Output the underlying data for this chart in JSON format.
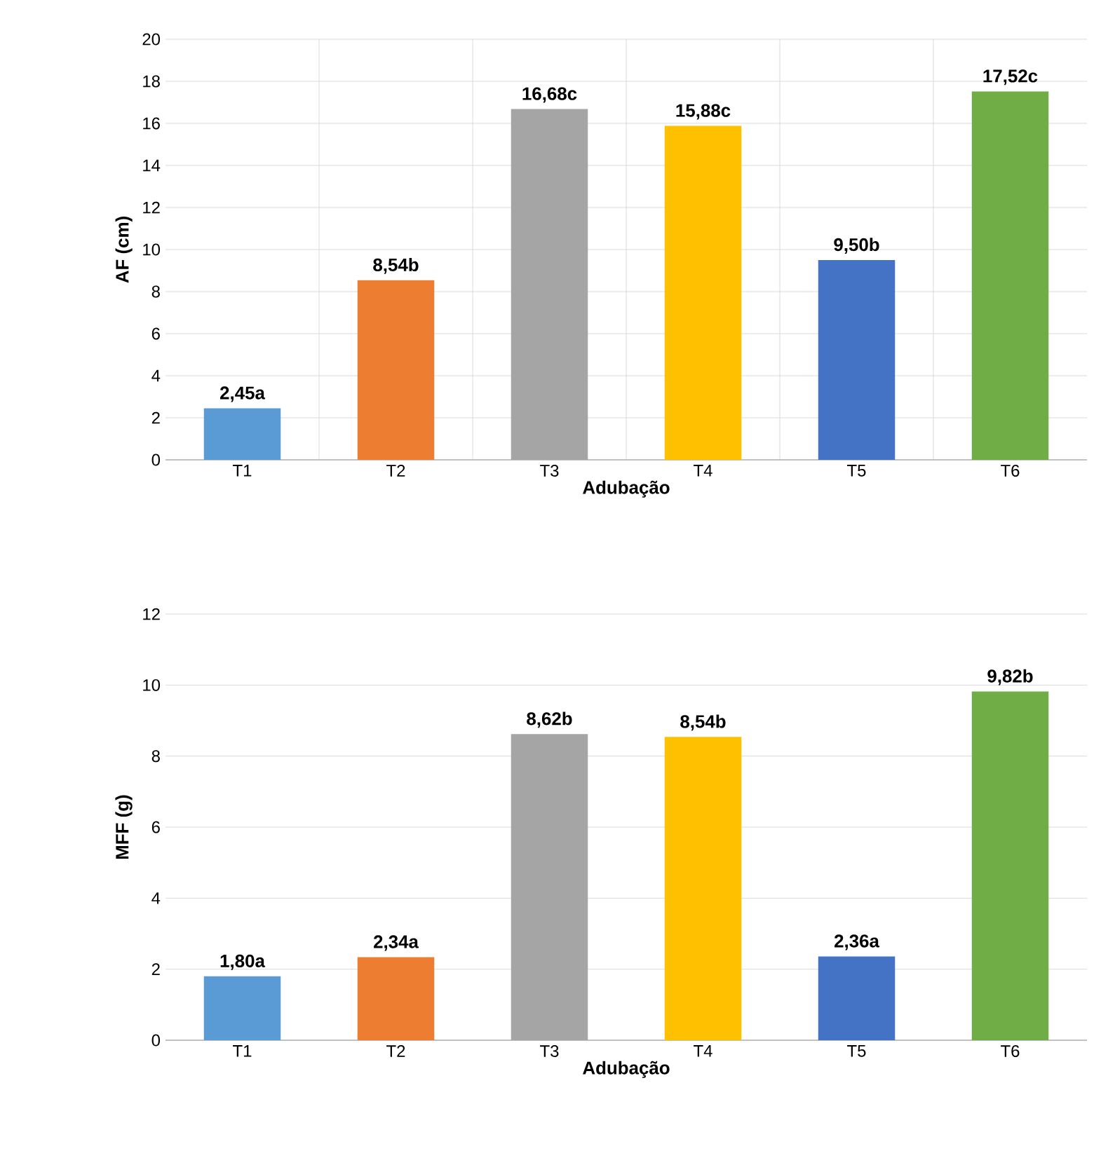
{
  "chart_data": [
    {
      "type": "bar",
      "categories": [
        "T1",
        "T2",
        "T3",
        "T4",
        "T5",
        "T6"
      ],
      "values": [
        2.45,
        8.54,
        16.68,
        15.88,
        9.5,
        17.52
      ],
      "value_labels": [
        "2,45a",
        "8,54b",
        "16,68c",
        "15,88c",
        "9,50b",
        "17,52c"
      ],
      "colors": [
        "#5b9bd5",
        "#ed7d31",
        "#a5a5a5",
        "#ffc000",
        "#4472c4",
        "#70ad47"
      ],
      "xlabel": "Adubação",
      "ylabel": "AF (cm)",
      "ylim": [
        0,
        20
      ],
      "yticks": [
        0,
        2,
        4,
        6,
        8,
        10,
        12,
        14,
        16,
        18,
        20
      ],
      "grid": true
    },
    {
      "type": "bar",
      "categories": [
        "T1",
        "T2",
        "T3",
        "T4",
        "T5",
        "T6"
      ],
      "values": [
        1.8,
        2.34,
        8.62,
        8.54,
        2.36,
        9.82
      ],
      "value_labels": [
        "1,80a",
        "2,34a",
        "8,62b",
        "8,54b",
        "2,36a",
        "9,82b"
      ],
      "colors": [
        "#5b9bd5",
        "#ed7d31",
        "#a5a5a5",
        "#ffc000",
        "#4472c4",
        "#70ad47"
      ],
      "xlabel": "Adubação",
      "ylabel": "MFF (g)",
      "ylim": [
        0,
        12
      ],
      "yticks": [
        0,
        2,
        4,
        6,
        8,
        10,
        12
      ],
      "grid": "y"
    }
  ]
}
